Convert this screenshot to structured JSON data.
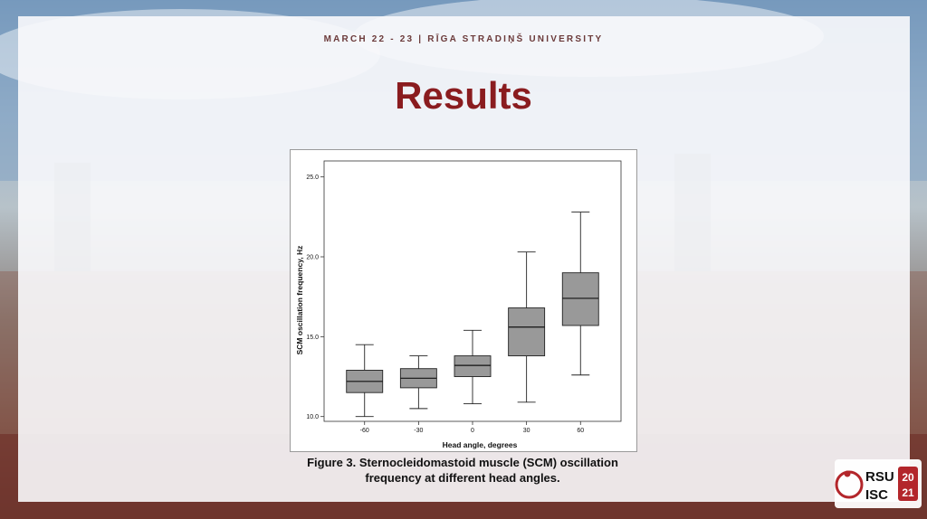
{
  "slide": {
    "header": "MARCH 22 - 23  |  RĪGA STRADIŅŠ UNIVERSITY",
    "title": "Results",
    "caption_line1": "Figure 3.  Sternocleidomastoid muscle (SCM) oscillation",
    "caption_line2": "frequency at different head angles.",
    "logo": {
      "line1": "RSU",
      "line2": "ISC",
      "year_top": "20",
      "year_bottom": "21"
    }
  },
  "colors": {
    "title": "#8a1c1f",
    "box_fill": "#999999",
    "logo_red": "#b3262b"
  },
  "chart_data": {
    "type": "boxplot",
    "xlabel": "Head angle, degrees",
    "ylabel": "SCM oscillation frequency, Hz",
    "categories": [
      "-60",
      "-30",
      "0",
      "30",
      "60"
    ],
    "ylim": [
      9.7,
      26.0
    ],
    "yticks": [
      "10.0",
      "15.0",
      "20.0",
      "25.0"
    ],
    "yticks_values": [
      10.0,
      15.0,
      20.0,
      25.0
    ],
    "boxes": [
      {
        "min": 10.0,
        "q1": 11.5,
        "median": 12.2,
        "q3": 12.9,
        "max": 14.5
      },
      {
        "min": 10.5,
        "q1": 11.8,
        "median": 12.4,
        "q3": 13.0,
        "max": 13.8
      },
      {
        "min": 10.8,
        "q1": 12.5,
        "median": 13.2,
        "q3": 13.8,
        "max": 15.4
      },
      {
        "min": 10.9,
        "q1": 13.8,
        "median": 15.6,
        "q3": 16.8,
        "max": 20.3
      },
      {
        "min": 12.6,
        "q1": 15.7,
        "median": 17.4,
        "q3": 19.0,
        "max": 22.8
      }
    ]
  }
}
